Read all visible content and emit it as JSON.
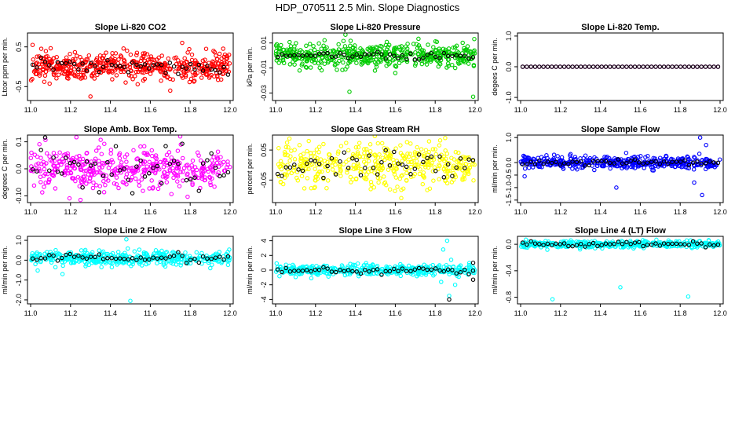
{
  "figure": {
    "title": "HDP_070511  2.5 Min. Slope Diagnostics",
    "colors": {
      "median_points": "#000000",
      "frame": "#000000"
    }
  },
  "chart_data": [
    {
      "type": "scatter",
      "title": "Slope Li-820 CO2",
      "ylabel": "Ltcor ppm per min.",
      "xlim": [
        11.0,
        12.0
      ],
      "xticks": [
        "11.0",
        "11.2",
        "11.4",
        "11.6",
        "11.8",
        "12.0"
      ],
      "ylim": [
        -0.85,
        0.85
      ],
      "yticks": [
        {
          "value": 0.5,
          "label": "0.5"
        },
        {
          "value": -0.5,
          "label": "-0.5"
        }
      ],
      "color": "#ff0000",
      "series": [
        {
          "name": "slope",
          "n": 500,
          "center": 0.0,
          "spread": 0.17,
          "outliers": [
            {
              "x": 11.01,
              "y": 0.55
            },
            {
              "x": 11.3,
              "y": -0.75
            },
            {
              "x": 11.76,
              "y": 0.6
            },
            {
              "x": 11.7,
              "y": -0.6
            },
            {
              "x": 11.88,
              "y": 0.45
            }
          ]
        },
        {
          "name": "median",
          "n": 48,
          "center": 0.0,
          "spread": 0.09,
          "outliers": []
        }
      ]
    },
    {
      "type": "scatter",
      "title": "Slope Li-820 Pressure",
      "ylabel": "kPa per min.",
      "xlim": [
        11.0,
        12.0
      ],
      "xticks": [
        "11.0",
        "11.2",
        "11.4",
        "11.6",
        "11.8",
        "12.0"
      ],
      "ylim": [
        -0.036,
        0.018
      ],
      "yticks": [
        {
          "value": 0.01,
          "label": "0.01"
        },
        {
          "value": -0.01,
          "label": "-0.01"
        },
        {
          "value": -0.03,
          "label": "-0.03"
        }
      ],
      "color": "#00cc00",
      "series": [
        {
          "name": "slope",
          "n": 480,
          "center": 0.0,
          "spread": 0.0045,
          "outliers": [
            {
              "x": 11.37,
              "y": -0.029
            },
            {
              "x": 11.99,
              "y": -0.033
            },
            {
              "x": 11.12,
              "y": -0.012
            },
            {
              "x": 11.6,
              "y": -0.014
            }
          ]
        },
        {
          "name": "median",
          "n": 48,
          "center": 0.0,
          "spread": 0.0015,
          "outliers": []
        }
      ]
    },
    {
      "type": "scatter",
      "title": "Slope Li-820 Temp.",
      "ylabel": "degees C per min.",
      "xlim": [
        11.0,
        12.0
      ],
      "xticks": [
        "11.0",
        "11.2",
        "11.4",
        "11.6",
        "11.8",
        "12.0"
      ],
      "ylim": [
        -1.1,
        1.1
      ],
      "yticks": [
        {
          "value": 1.0,
          "label": "1.0"
        },
        {
          "value": 0.0,
          "label": "0.0"
        },
        {
          "value": -1.0,
          "label": "-1.0"
        }
      ],
      "color": "#ff00ff",
      "series": [
        {
          "name": "slope",
          "n": 48,
          "center": 0.0,
          "spread": 0.0,
          "outliers": []
        },
        {
          "name": "median",
          "n": 48,
          "center": 0.0,
          "spread": 0.0,
          "outliers": []
        }
      ]
    },
    {
      "type": "scatter",
      "title": "Slope Amb. Box Temp.",
      "ylabel": "degrees C per min.",
      "xlim": [
        11.0,
        12.0
      ],
      "xticks": [
        "11.0",
        "11.2",
        "11.4",
        "11.6",
        "11.8",
        "12.0"
      ],
      "ylim": [
        -0.125,
        0.125
      ],
      "yticks": [
        {
          "value": 0.1,
          "label": "0.1"
        },
        {
          "value": 0.0,
          "label": "0.0"
        },
        {
          "value": -0.1,
          "label": "-0.10"
        }
      ],
      "color": "#ff00ff",
      "series": [
        {
          "name": "slope",
          "n": 420,
          "center": 0.0,
          "spread": 0.04,
          "outliers": [
            {
              "x": 11.75,
              "y": 0.12
            },
            {
              "x": 11.25,
              "y": -0.115
            }
          ]
        },
        {
          "name": "median",
          "n": 48,
          "center": 0.0,
          "spread": 0.05,
          "outliers": []
        }
      ]
    },
    {
      "type": "scatter",
      "title": "Slope Gas Stream RH",
      "ylabel": "percent per min.",
      "xlim": [
        11.0,
        12.0
      ],
      "xticks": [
        "11.0",
        "11.2",
        "11.4",
        "11.6",
        "11.8",
        "12.0"
      ],
      "ylim": [
        -0.125,
        0.1
      ],
      "yticks": [
        {
          "value": 0.05,
          "label": "0.05"
        },
        {
          "value": -0.05,
          "label": "-0.05"
        }
      ],
      "color": "#ffff00",
      "series": [
        {
          "name": "slope",
          "n": 420,
          "center": 0.0,
          "spread": 0.035,
          "outliers": [
            {
              "x": 11.85,
              "y": 0.09
            },
            {
              "x": 11.63,
              "y": -0.11
            }
          ]
        },
        {
          "name": "median",
          "n": 48,
          "center": 0.0,
          "spread": 0.022,
          "outliers": []
        }
      ]
    },
    {
      "type": "scatter",
      "title": "Slope Sample Flow",
      "ylabel": "ml/min per min.",
      "xlim": [
        11.0,
        12.0
      ],
      "xticks": [
        "11.0",
        "11.2",
        "11.4",
        "11.6",
        "11.8",
        "12.0"
      ],
      "ylim": [
        -1.6,
        1.1
      ],
      "yticks": [
        {
          "value": 1.0,
          "label": "1.0"
        },
        {
          "value": 0.0,
          "label": "0.0"
        },
        {
          "value": -0.5,
          "label": "-0.5"
        },
        {
          "value": -1.0,
          "label": "-1.0"
        },
        {
          "value": -1.5,
          "label": "-1.5"
        }
      ],
      "color": "#0000ff",
      "series": [
        {
          "name": "slope",
          "n": 420,
          "center": 0.0,
          "spread": 0.12,
          "outliers": [
            {
              "x": 11.48,
              "y": -1.0
            },
            {
              "x": 11.9,
              "y": 1.0
            },
            {
              "x": 11.91,
              "y": -1.3
            },
            {
              "x": 11.93,
              "y": 0.7
            },
            {
              "x": 11.87,
              "y": -0.8
            },
            {
              "x": 11.02,
              "y": -0.55
            }
          ]
        },
        {
          "name": "median",
          "n": 48,
          "center": 0.0,
          "spread": 0.05,
          "outliers": []
        }
      ]
    },
    {
      "type": "scatter",
      "title": "Slope Line 2 Flow",
      "ylabel": "ml/min per min.",
      "xlim": [
        11.0,
        12.0
      ],
      "xticks": [
        "11.0",
        "11.2",
        "11.4",
        "11.6",
        "11.8",
        "12.0"
      ],
      "ylim": [
        -2.2,
        1.2
      ],
      "yticks": [
        {
          "value": 1.0,
          "label": "1.0"
        },
        {
          "value": 0.0,
          "label": "0.0"
        },
        {
          "value": -1.0,
          "label": "-1.0"
        },
        {
          "value": -2.0,
          "label": "-2.0"
        }
      ],
      "color": "#00ffff",
      "series": [
        {
          "name": "slope",
          "n": 420,
          "center": 0.1,
          "spread": 0.18,
          "outliers": [
            {
              "x": 11.5,
              "y": -2.05
            },
            {
              "x": 11.48,
              "y": 1.05
            },
            {
              "x": 11.16,
              "y": -0.7
            }
          ]
        },
        {
          "name": "median",
          "n": 48,
          "center": 0.1,
          "spread": 0.08,
          "outliers": []
        }
      ]
    },
    {
      "type": "scatter",
      "title": "Slope Line 3 Flow",
      "ylabel": "ml/min per min.",
      "xlim": [
        11.0,
        12.0
      ],
      "xticks": [
        "11.0",
        "11.2",
        "11.4",
        "11.6",
        "11.8",
        "12.0"
      ],
      "ylim": [
        -4.6,
        4.6
      ],
      "yticks": [
        {
          "value": 4,
          "label": "4"
        },
        {
          "value": 2,
          "label": "2"
        },
        {
          "value": 0,
          "label": "0"
        },
        {
          "value": -2,
          "label": "-2"
        },
        {
          "value": -4,
          "label": "-4"
        }
      ],
      "color": "#00ffff",
      "series": [
        {
          "name": "slope",
          "n": 400,
          "center": 0.0,
          "spread": 0.35,
          "outliers": [
            {
              "x": 11.86,
              "y": 4.0
            },
            {
              "x": 11.84,
              "y": 2.8
            },
            {
              "x": 11.87,
              "y": -3.5
            },
            {
              "x": 11.83,
              "y": -1.6
            },
            {
              "x": 11.88,
              "y": 1.4
            },
            {
              "x": 11.9,
              "y": -2.0
            }
          ]
        },
        {
          "name": "median",
          "n": 48,
          "center": 0.0,
          "spread": 0.2,
          "outliers": [
            {
              "x": 11.87,
              "y": -4.0
            },
            {
              "x": 11.99,
              "y": 1.0
            },
            {
              "x": 11.99,
              "y": -1.3
            }
          ]
        }
      ]
    },
    {
      "type": "scatter",
      "title": "Slope Line 4 (LT) Flow",
      "ylabel": "ml/min per min.",
      "xlim": [
        11.0,
        12.0
      ],
      "xticks": [
        "11.0",
        "11.2",
        "11.4",
        "11.6",
        "11.8",
        "12.0"
      ],
      "ylim": [
        -0.9,
        0.12
      ],
      "yticks": [
        {
          "value": 0.0,
          "label": "0.0"
        },
        {
          "value": -0.4,
          "label": "-0.4"
        },
        {
          "value": -0.8,
          "label": "-0.8"
        }
      ],
      "color": "#00ffff",
      "series": [
        {
          "name": "slope",
          "n": 420,
          "center": 0.0,
          "spread": 0.025,
          "outliers": [
            {
              "x": 11.16,
              "y": -0.83
            },
            {
              "x": 11.5,
              "y": -0.65
            },
            {
              "x": 11.84,
              "y": -0.79
            }
          ]
        },
        {
          "name": "median",
          "n": 48,
          "center": 0.0,
          "spread": 0.02,
          "outliers": []
        }
      ]
    }
  ]
}
